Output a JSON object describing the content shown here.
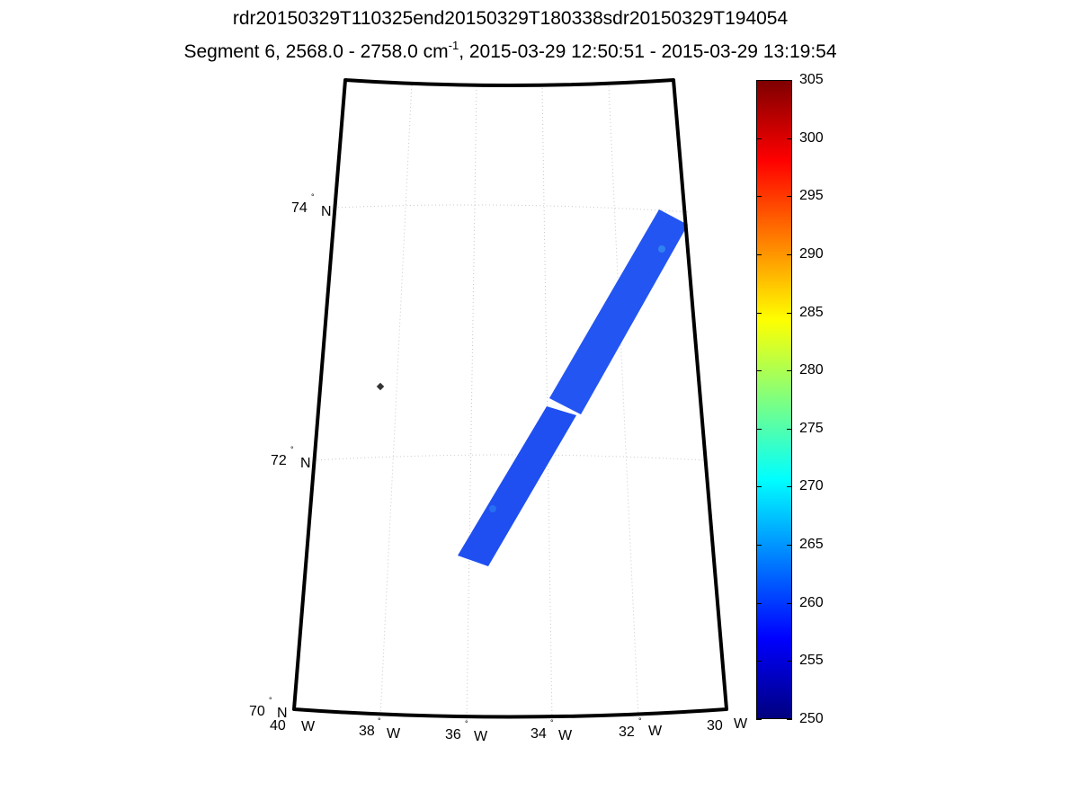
{
  "figure": {
    "title_line1": "rdr20150329T110325end20150329T180338sdr20150329T194054",
    "title_line2_prefix": "Segment 6, 2568.0 - 2758.0 cm",
    "title_line2_sup": "-1",
    "title_line2_suffix": ", 2015-03-29 12:50:51 - 2015-03-29 13:19:54"
  },
  "map": {
    "projection": "conic",
    "lat_range": [
      70,
      75
    ],
    "lon_range": [
      -40,
      -30
    ],
    "lat_labels": [
      {
        "value": "70",
        "hemi": "N"
      },
      {
        "value": "72",
        "hemi": "N"
      },
      {
        "value": "74",
        "hemi": "N"
      }
    ],
    "lon_labels": [
      {
        "value": "40",
        "hemi": "W"
      },
      {
        "value": "38",
        "hemi": "W"
      },
      {
        "value": "36",
        "hemi": "W"
      },
      {
        "value": "34",
        "hemi": "W"
      },
      {
        "value": "32",
        "hemi": "W"
      },
      {
        "value": "30",
        "hemi": "W"
      }
    ],
    "degree_symbol": "°",
    "grid": "dotted",
    "swath_color": "#1f4ff0",
    "marker_color": "#333333"
  },
  "colorbar": {
    "min": 250,
    "max": 305,
    "colormap": "jet",
    "ticks": [
      "305",
      "300",
      "295",
      "290",
      "285",
      "280",
      "275",
      "270",
      "265",
      "260",
      "255",
      "250"
    ]
  }
}
